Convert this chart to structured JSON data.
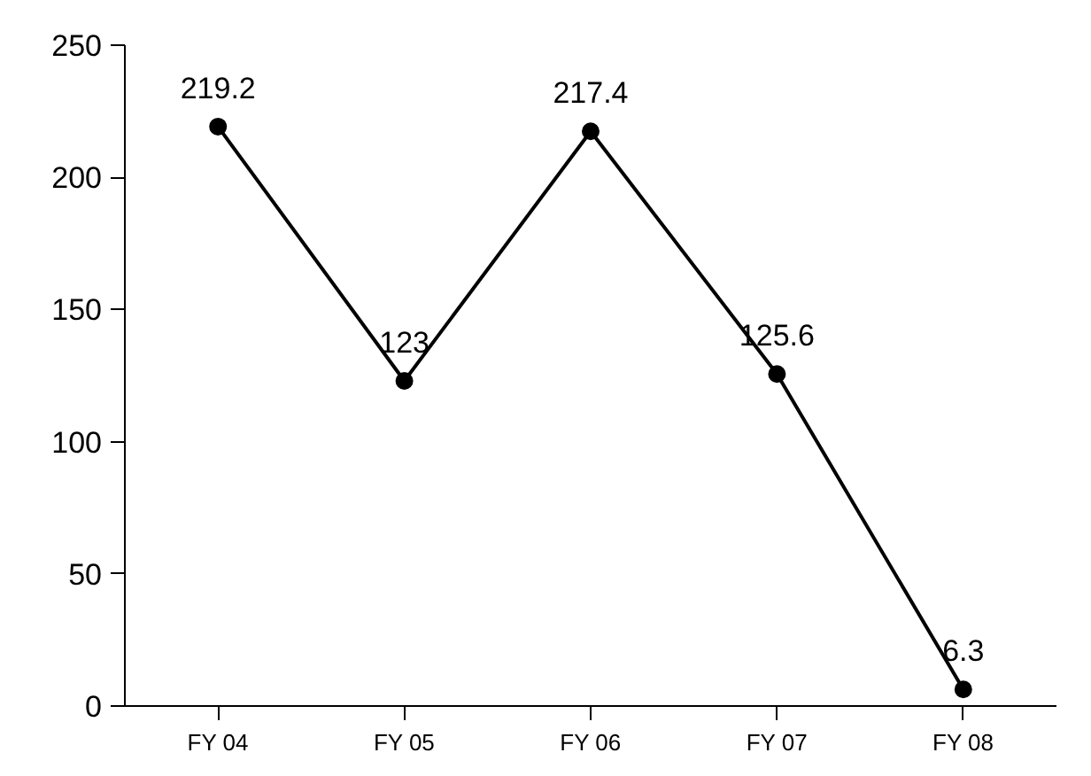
{
  "chart_data": {
    "type": "line",
    "categories": [
      "FY 04",
      "FY 05",
      "FY 06",
      "FY 07",
      "FY 08"
    ],
    "series": [
      {
        "color": "#000000",
        "values": [
          219.2,
          123,
          217.4,
          125.6,
          6.3
        ]
      }
    ],
    "ylim": [
      0,
      250
    ],
    "yticks": [
      0,
      50,
      100,
      150,
      200,
      250
    ],
    "data_labels": true,
    "marker": "circle"
  }
}
